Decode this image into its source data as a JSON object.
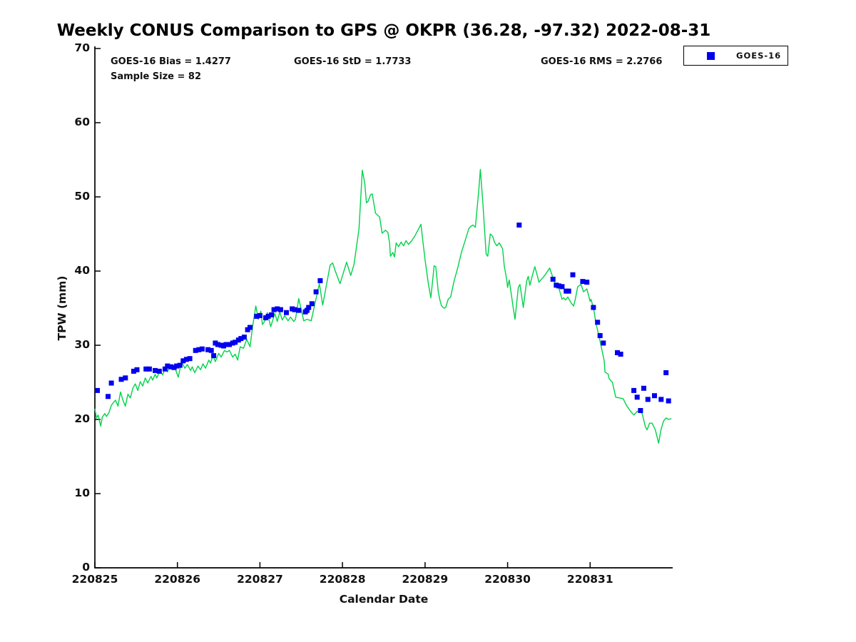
{
  "title": "Weekly CONUS Comparison to GPS @ OKPR (36.28, -97.32) 2022-08-31",
  "annotations": {
    "bias": "GOES-16 Bias = 1.4277",
    "std": "GOES-16 StD = 1.7733",
    "rms": "GOES-16 RMS = 2.2766",
    "sample": "Sample Size = 82"
  },
  "legend": {
    "entries": [
      {
        "label": "GOES-16",
        "marker": "square",
        "marker_color": "#0000ee"
      }
    ]
  },
  "colors": {
    "gps_line": "#00d24b",
    "goes16_marker": "#0000ee",
    "axis": "#000000",
    "text": "#111111"
  },
  "chart_data": {
    "type": "line",
    "title": "Weekly CONUS Comparison to GPS @ OKPR (36.28, -97.32) 2022-08-31",
    "xlabel": "Calendar Date",
    "ylabel": "TPW (mm)",
    "xlim": [
      220825,
      220832
    ],
    "ylim": [
      0,
      70
    ],
    "x_ticks": [
      220825,
      220826,
      220827,
      220828,
      220829,
      220830,
      220831
    ],
    "y_ticks": [
      0,
      10,
      20,
      30,
      40,
      50,
      60,
      70
    ],
    "grid": false,
    "legend_position": "top-right-outside",
    "stats": {
      "bias": 1.4277,
      "std": 1.7733,
      "rms": 2.2766,
      "sample_size": 82
    },
    "series": [
      {
        "name": "GPS",
        "type": "line",
        "color": "#00d24b",
        "x": [
          220825.0,
          220825.02,
          220825.04,
          220825.07,
          220825.09,
          220825.12,
          220825.14,
          220825.17,
          220825.2,
          220825.22,
          220825.25,
          220825.28,
          220825.31,
          220825.34,
          220825.37,
          220825.4,
          220825.43,
          220825.46,
          220825.49,
          220825.52,
          220825.55,
          220825.58,
          220825.61,
          220825.64,
          220825.68,
          220825.7,
          220825.73,
          220825.75,
          220825.79,
          220825.82,
          220825.86,
          220825.88,
          220825.91,
          220825.94,
          220825.97,
          220825.99,
          220826.01,
          220826.05,
          220826.09,
          220826.12,
          220826.16,
          220826.18,
          220826.21,
          220826.25,
          220826.28,
          220826.31,
          220826.34,
          220826.38,
          220826.4,
          220826.43,
          220826.46,
          220826.5,
          220826.53,
          220826.57,
          220826.6,
          220826.63,
          220826.67,
          220826.7,
          220826.73,
          220826.76,
          220826.8,
          220826.84,
          220826.88,
          220826.91,
          220826.95,
          220826.98,
          220827.01,
          220827.03,
          220827.06,
          220827.09,
          220827.13,
          220827.18,
          220827.21,
          220827.24,
          220827.27,
          220827.3,
          220827.34,
          220827.37,
          220827.41,
          220827.43,
          220827.47,
          220827.53,
          220827.57,
          220827.62,
          220827.72,
          220827.76,
          220827.85,
          220827.88,
          220827.91,
          220827.97,
          220828.05,
          220828.1,
          220828.14,
          220828.2,
          220828.24,
          220828.27,
          220828.29,
          220828.31,
          220828.34,
          220828.36,
          220828.4,
          220828.45,
          220828.48,
          220828.52,
          220828.55,
          220828.57,
          220828.58,
          220828.61,
          220828.63,
          220828.65,
          220828.68,
          220828.71,
          220828.74,
          220828.77,
          220828.8,
          220828.84,
          220828.88,
          220828.95,
          220829.0,
          220829.04,
          220829.07,
          220829.11,
          220829.13,
          220829.16,
          220829.18,
          220829.2,
          220829.23,
          220829.25,
          220829.28,
          220829.31,
          220829.35,
          220829.4,
          220829.44,
          220829.48,
          220829.53,
          220829.55,
          220829.58,
          220829.61,
          220829.65,
          220829.67,
          220829.7,
          220829.72,
          220829.74,
          220829.76,
          220829.79,
          220829.82,
          220829.84,
          220829.87,
          220829.9,
          220829.94,
          220829.96,
          220829.99,
          220830.0,
          220830.02,
          220830.07,
          220830.09,
          220830.13,
          220830.15,
          220830.19,
          220830.23,
          220830.25,
          220830.27,
          220830.31,
          220830.33,
          220830.36,
          220830.38,
          220830.45,
          220830.51,
          220830.55,
          220830.58,
          220830.62,
          220830.64,
          220830.66,
          220830.68,
          220830.7,
          220830.73,
          220830.75,
          220830.77,
          220830.8,
          220830.82,
          220830.85,
          220830.89,
          220830.92,
          220830.96,
          220831.0,
          220831.01,
          220831.04,
          220831.07,
          220831.11,
          220831.14,
          220831.17,
          220831.18,
          220831.22,
          220831.23,
          220831.27,
          220831.31,
          220831.4,
          220831.44,
          220831.49,
          220831.53,
          220831.57,
          220831.61,
          220831.63,
          220831.67,
          220831.69,
          220831.72,
          220831.75,
          220831.79,
          220831.83,
          220831.86,
          220831.89,
          220831.92,
          220831.95,
          220831.98
        ],
        "y": [
          21.4,
          20.2,
          20.6,
          19.1,
          20.3,
          20.8,
          20.4,
          20.9,
          21.9,
          22.2,
          22.6,
          21.8,
          23.7,
          22.6,
          21.8,
          23.4,
          22.9,
          24.2,
          24.8,
          23.9,
          25.1,
          24.5,
          25.6,
          24.9,
          25.8,
          25.3,
          26.1,
          25.6,
          26.6,
          26.0,
          27.1,
          26.4,
          27.2,
          26.7,
          27.1,
          26.3,
          25.7,
          27.8,
          26.9,
          27.4,
          26.6,
          27.1,
          26.3,
          27.2,
          26.7,
          27.5,
          26.9,
          28.0,
          27.6,
          28.6,
          27.8,
          28.9,
          28.4,
          29.3,
          29.1,
          29.3,
          28.4,
          28.8,
          28.0,
          29.8,
          29.6,
          30.8,
          29.8,
          32.4,
          35.3,
          33.5,
          34.6,
          32.8,
          33.3,
          34.4,
          32.5,
          34.3,
          33.2,
          34.5,
          33.4,
          34.0,
          33.3,
          33.8,
          33.2,
          33.5,
          36.3,
          33.3,
          33.5,
          33.3,
          38.3,
          35.4,
          40.8,
          41.1,
          40.1,
          38.3,
          41.2,
          39.4,
          40.9,
          45.7,
          53.6,
          51.8,
          49.2,
          49.4,
          50.3,
          50.4,
          47.8,
          47.3,
          45.1,
          45.5,
          45.2,
          43.8,
          42.0,
          42.5,
          41.9,
          43.8,
          43.3,
          43.9,
          43.4,
          44.1,
          43.6,
          44.1,
          44.8,
          46.3,
          41.5,
          38.3,
          36.4,
          40.7,
          40.6,
          37.2,
          36.1,
          35.3,
          35.0,
          35.1,
          36.2,
          36.5,
          38.6,
          40.6,
          42.5,
          43.9,
          45.7,
          46.0,
          46.2,
          45.9,
          50.8,
          53.7,
          49.2,
          45.7,
          42.3,
          42.0,
          45.0,
          44.7,
          43.9,
          43.4,
          43.8,
          43.0,
          40.7,
          38.8,
          37.8,
          38.8,
          34.9,
          33.5,
          37.8,
          38.2,
          35.1,
          38.6,
          39.3,
          38.1,
          39.8,
          40.6,
          39.4,
          38.5,
          39.4,
          40.4,
          39.1,
          38.2,
          37.7,
          37.0,
          36.2,
          36.4,
          36.1,
          36.5,
          36.1,
          35.7,
          35.3,
          36.2,
          37.9,
          38.2,
          37.2,
          37.6,
          35.9,
          36.2,
          35.1,
          33.0,
          31.1,
          29.5,
          27.9,
          26.4,
          26.1,
          25.5,
          25.0,
          23.0,
          22.8,
          21.9,
          21.1,
          20.6,
          21.1,
          21.0,
          20.8,
          19.0,
          18.6,
          19.5,
          19.5,
          18.6,
          16.8,
          18.7,
          19.8,
          20.2,
          20.0,
          20.1
        ]
      },
      {
        "name": "GOES-16",
        "type": "scatter",
        "color": "#0000ee",
        "x": [
          220825.03,
          220825.16,
          220825.2,
          220825.32,
          220825.37,
          220825.47,
          220825.51,
          220825.62,
          220825.66,
          220825.73,
          220825.78,
          220825.85,
          220825.88,
          220825.92,
          220825.96,
          220825.99,
          220826.03,
          220826.07,
          220826.11,
          220826.15,
          220826.22,
          220826.26,
          220826.3,
          220826.37,
          220826.41,
          220826.44,
          220826.46,
          220826.49,
          220826.53,
          220826.56,
          220826.59,
          220826.63,
          220826.67,
          220826.7,
          220826.74,
          220826.77,
          220826.81,
          220826.85,
          220826.88,
          220826.96,
          220827.0,
          220827.07,
          220827.1,
          220827.14,
          220827.17,
          220827.21,
          220827.25,
          220827.32,
          220827.39,
          220827.42,
          220827.47,
          220827.55,
          220827.57,
          220827.59,
          220827.63,
          220827.68,
          220827.73,
          220830.14,
          220830.55,
          220830.59,
          220830.62,
          220830.66,
          220830.71,
          220830.74,
          220830.79,
          220830.91,
          220830.96,
          220831.04,
          220831.09,
          220831.12,
          220831.16,
          220831.33,
          220831.37,
          220831.53,
          220831.57,
          220831.61,
          220831.65,
          220831.7,
          220831.78,
          220831.86,
          220831.92,
          220831.95
        ],
        "y": [
          23.9,
          23.1,
          24.9,
          25.4,
          25.6,
          26.5,
          26.7,
          26.8,
          26.8,
          26.6,
          26.5,
          26.8,
          27.2,
          27.1,
          27.0,
          27.2,
          27.3,
          27.9,
          28.1,
          28.2,
          29.3,
          29.4,
          29.5,
          29.4,
          29.3,
          28.6,
          30.3,
          30.1,
          30.0,
          29.9,
          30.1,
          30.1,
          30.3,
          30.4,
          30.7,
          30.9,
          31.1,
          32.1,
          32.4,
          33.9,
          34.0,
          33.7,
          33.9,
          34.1,
          34.8,
          34.9,
          34.8,
          34.4,
          34.9,
          34.8,
          34.7,
          34.5,
          34.7,
          35.1,
          35.6,
          37.2,
          38.7,
          46.2,
          38.9,
          38.1,
          38.0,
          37.9,
          37.3,
          37.3,
          39.5,
          38.6,
          38.5,
          35.1,
          33.1,
          31.3,
          30.3,
          29.0,
          28.8,
          23.9,
          23.0,
          21.2,
          24.2,
          22.7,
          23.2,
          22.7,
          26.3,
          22.5
        ]
      }
    ]
  }
}
